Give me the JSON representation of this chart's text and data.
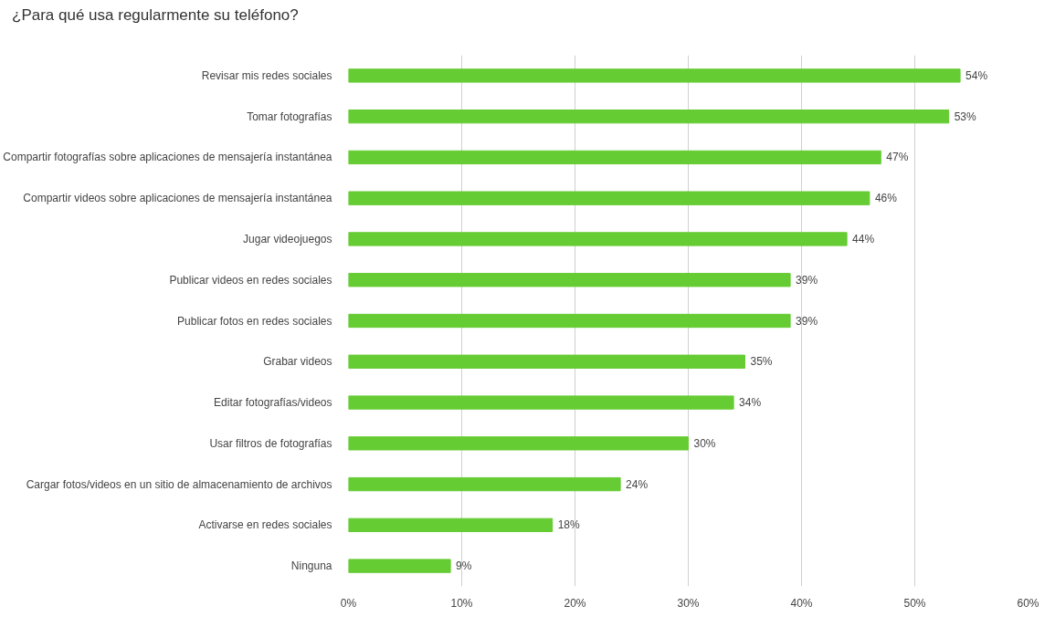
{
  "chart_data": {
    "type": "bar",
    "orientation": "horizontal",
    "title": "¿Para qué usa regularmente su teléfono?",
    "categories": [
      "Revisar mis redes sociales",
      "Tomar fotografías",
      "Compartir fotografías sobre aplicaciones de mensajería instantánea",
      "Compartir videos sobre aplicaciones de mensajería instantánea",
      "Jugar videojuegos",
      "Publicar videos en redes sociales",
      "Publicar fotos en redes sociales",
      "Grabar videos",
      "Editar fotografías/videos",
      "Usar filtros de fotografías",
      "Cargar fotos/videos en un sitio de almacenamiento de archivos",
      "Activarse en redes sociales",
      "Ninguna"
    ],
    "values": [
      54,
      53,
      47,
      46,
      44,
      39,
      39,
      35,
      34,
      30,
      24,
      18,
      9
    ],
    "value_labels": [
      "54%",
      "53%",
      "47%",
      "46%",
      "44%",
      "39%",
      "39%",
      "35%",
      "34%",
      "30%",
      "24%",
      "18%",
      "9%"
    ],
    "color": "#66cc33",
    "xlim": [
      0,
      60
    ],
    "xticks": [
      {
        "value": 0,
        "label": "0%"
      },
      {
        "value": 10,
        "label": "10%"
      },
      {
        "value": 20,
        "label": "20%"
      },
      {
        "value": 30,
        "label": "30%"
      },
      {
        "value": 40,
        "label": "40%"
      },
      {
        "value": 50,
        "label": "50%"
      },
      {
        "value": 60,
        "label": "60%"
      }
    ],
    "grid": "x"
  }
}
